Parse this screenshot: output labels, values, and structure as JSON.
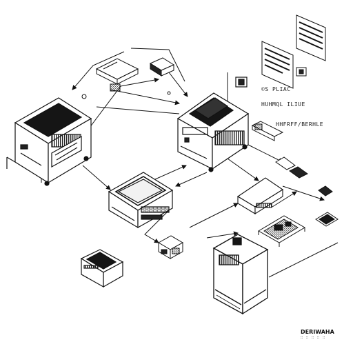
{
  "labels": {
    "label_a": "©S PLIAC",
    "label_b": "HUHMQL  ILIUE",
    "label_c": "HHFRFF/BERHLE"
  },
  "brand": {
    "name": "DERIWAHA",
    "subtitle": "∷ ∷ ∷ ∷ ∷"
  },
  "colors": {
    "ink": "#111111",
    "dark_fill": "#151515",
    "paper": "#ffffff"
  }
}
